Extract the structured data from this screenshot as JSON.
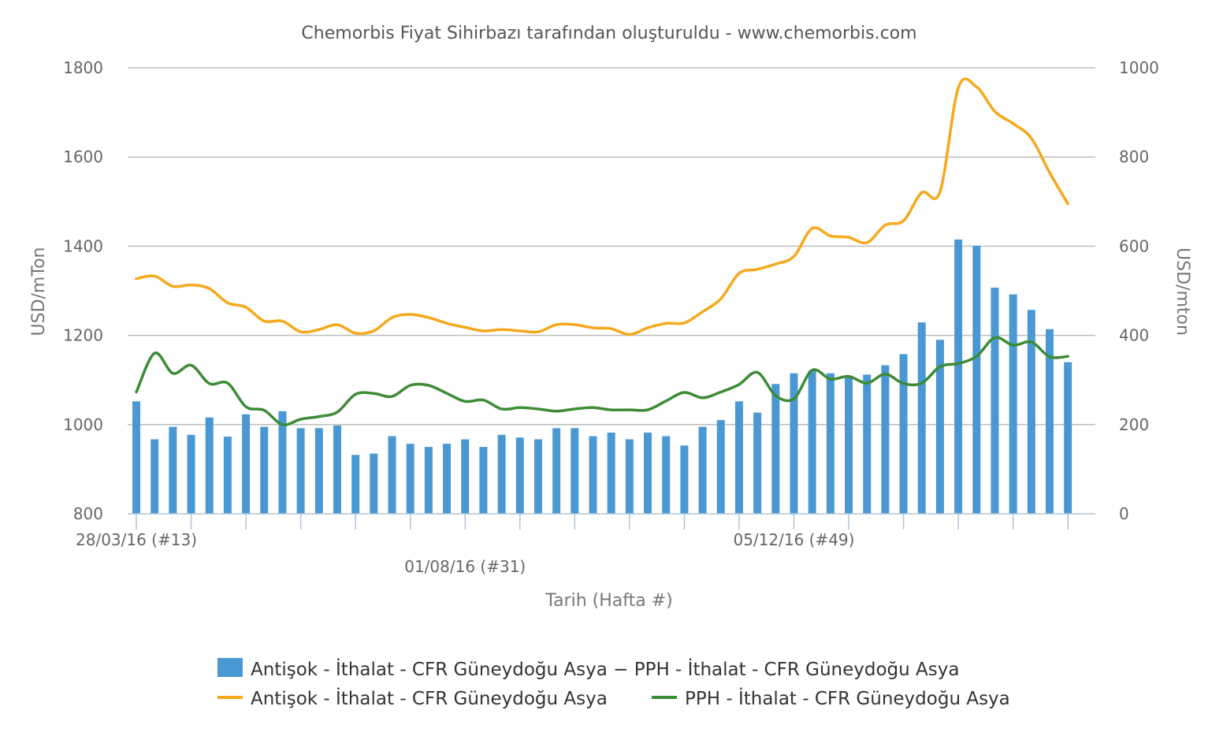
{
  "chart_data": {
    "type": "bar",
    "title": "Chemorbis Fiyat Sihirbazı tarafından oluşturuldu - www.chemorbis.com",
    "xlabel": "Tarih (Hafta #)",
    "ylabel_left": "USD/mTon",
    "ylabel_right": "USD/mton",
    "ylim_left": [
      800,
      1800
    ],
    "ylim_right": [
      0,
      1000
    ],
    "yticks_left": [
      "800",
      "1000",
      "1200",
      "1400",
      "1600",
      "1800"
    ],
    "yticks_right": [
      "0",
      "200",
      "400",
      "600",
      "800",
      "1000"
    ],
    "x_tick_labels": [
      {
        "index": 0,
        "text": "28/03/16 (#13)",
        "row": 1
      },
      {
        "index": 18,
        "text": "01/08/16 (#31)",
        "row": 2
      },
      {
        "index": 36,
        "text": "05/12/16 (#49)",
        "row": 1
      }
    ],
    "grid": true,
    "series": [
      {
        "name": "Antişok - İthalat - CFR Güneydoğu Asya − PPH - İthalat - CFR Güneydoğu Asya",
        "type": "bar",
        "axis": "right",
        "color": "#4a98d3",
        "values": [
          252,
          167,
          195,
          177,
          216,
          173,
          223,
          195,
          230,
          192,
          192,
          198,
          132,
          135,
          174,
          157,
          150,
          157,
          167,
          150,
          177,
          171,
          167,
          192,
          192,
          174,
          182,
          167,
          182,
          174,
          153,
          195,
          210,
          252,
          227,
          291,
          315,
          321,
          315,
          309,
          312,
          333,
          358,
          429,
          390,
          615,
          601,
          507,
          492,
          457,
          414,
          340
        ]
      },
      {
        "name": "Antişok - İthalat - CFR Güneydoğu Asya",
        "type": "line",
        "axis": "left",
        "color": "#f5a81c",
        "values": [
          1327,
          1333,
          1310,
          1313,
          1305,
          1273,
          1263,
          1232,
          1232,
          1208,
          1213,
          1224,
          1205,
          1210,
          1240,
          1247,
          1240,
          1227,
          1218,
          1210,
          1213,
          1210,
          1208,
          1224,
          1224,
          1217,
          1215,
          1202,
          1217,
          1227,
          1228,
          1253,
          1282,
          1339,
          1348,
          1360,
          1377,
          1440,
          1423,
          1420,
          1408,
          1447,
          1457,
          1520,
          1522,
          1755,
          1757,
          1702,
          1675,
          1642,
          1565,
          1495
        ]
      },
      {
        "name": "PPH - İthalat - CFR Güneydoğu Asya",
        "type": "line",
        "axis": "left",
        "color": "#3d8b37",
        "values": [
          1073,
          1160,
          1115,
          1133,
          1092,
          1093,
          1040,
          1032,
          1000,
          1012,
          1018,
          1028,
          1068,
          1070,
          1063,
          1088,
          1088,
          1070,
          1052,
          1055,
          1035,
          1038,
          1035,
          1030,
          1035,
          1038,
          1033,
          1033,
          1033,
          1053,
          1072,
          1060,
          1073,
          1090,
          1117,
          1065,
          1058,
          1122,
          1102,
          1108,
          1093,
          1113,
          1092,
          1093,
          1130,
          1137,
          1153,
          1195,
          1178,
          1185,
          1152,
          1153
        ]
      }
    ],
    "legend": {
      "placement": "bottom",
      "items": [
        {
          "label": "Antişok - İthalat - CFR Güneydoğu Asya − PPH - İthalat - CFR Güneydoğu Asya",
          "symbol": "bar",
          "color": "#4a98d3"
        },
        {
          "label": "Antişok - İthalat - CFR Güneydoğu Asya",
          "symbol": "line",
          "color": "#f5a81c"
        },
        {
          "label": "PPH - İthalat - CFR Güneydoğu Asya",
          "symbol": "line",
          "color": "#3d8b37"
        }
      ]
    }
  }
}
